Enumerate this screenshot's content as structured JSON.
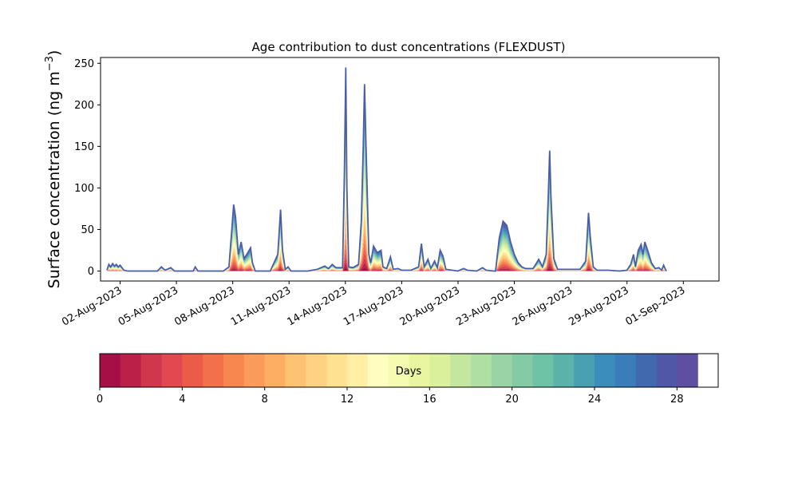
{
  "chart_data": {
    "type": "area",
    "title": "Age contribution to dust concentrations (FLEXDUST)",
    "ylabel_main": "Surface concentration (ng m",
    "ylabel_sup": "−3",
    "ylabel_close": ")",
    "ylim": [
      -12,
      257
    ],
    "yticks": [
      0,
      50,
      100,
      150,
      200,
      250
    ],
    "x_range_days": [
      "31-Jul-2023",
      "2-Sep-2023"
    ],
    "xticks": [
      {
        "date": "02-Aug-2023",
        "day": 2
      },
      {
        "date": "05-Aug-2023",
        "day": 5
      },
      {
        "date": "08-Aug-2023",
        "day": 8
      },
      {
        "date": "11-Aug-2023",
        "day": 11
      },
      {
        "date": "14-Aug-2023",
        "day": 14
      },
      {
        "date": "17-Aug-2023",
        "day": 17
      },
      {
        "date": "20-Aug-2023",
        "day": 20
      },
      {
        "date": "23-Aug-2023",
        "day": 23
      },
      {
        "date": "26-Aug-2023",
        "day": 26
      },
      {
        "date": "29-Aug-2023",
        "day": 29
      },
      {
        "date": "01-Sep-2023",
        "day": 32
      }
    ],
    "grid": false,
    "total_series": [
      [
        1.3,
        1
      ],
      [
        1.4,
        8
      ],
      [
        1.5,
        5
      ],
      [
        1.6,
        9
      ],
      [
        1.7,
        6
      ],
      [
        1.8,
        8
      ],
      [
        1.9,
        5
      ],
      [
        2.0,
        7
      ],
      [
        2.1,
        4
      ],
      [
        2.2,
        1
      ],
      [
        2.4,
        0
      ],
      [
        3.0,
        0
      ],
      [
        4.0,
        0
      ],
      [
        4.2,
        5
      ],
      [
        4.4,
        1
      ],
      [
        4.7,
        4
      ],
      [
        4.9,
        0
      ],
      [
        5.5,
        0
      ],
      [
        5.9,
        0
      ],
      [
        6.0,
        5
      ],
      [
        6.15,
        0
      ],
      [
        6.5,
        0
      ],
      [
        7.5,
        0
      ],
      [
        7.8,
        5
      ],
      [
        7.95,
        50
      ],
      [
        8.05,
        80
      ],
      [
        8.15,
        65
      ],
      [
        8.3,
        20
      ],
      [
        8.45,
        35
      ],
      [
        8.6,
        15
      ],
      [
        8.8,
        22
      ],
      [
        8.95,
        28
      ],
      [
        9.05,
        10
      ],
      [
        9.2,
        0
      ],
      [
        10.0,
        0
      ],
      [
        10.4,
        20
      ],
      [
        10.55,
        74
      ],
      [
        10.65,
        25
      ],
      [
        10.8,
        2
      ],
      [
        10.95,
        5
      ],
      [
        11.1,
        0
      ],
      [
        12.0,
        0
      ],
      [
        12.5,
        2
      ],
      [
        12.9,
        6
      ],
      [
        13.1,
        3
      ],
      [
        13.3,
        8
      ],
      [
        13.5,
        4
      ],
      [
        13.85,
        4
      ],
      [
        13.95,
        120
      ],
      [
        14.02,
        245
      ],
      [
        14.08,
        100
      ],
      [
        14.18,
        5
      ],
      [
        14.4,
        4
      ],
      [
        14.7,
        8
      ],
      [
        14.85,
        60
      ],
      [
        14.95,
        150
      ],
      [
        15.02,
        225
      ],
      [
        15.1,
        150
      ],
      [
        15.25,
        20
      ],
      [
        15.35,
        10
      ],
      [
        15.5,
        30
      ],
      [
        15.7,
        22
      ],
      [
        15.9,
        25
      ],
      [
        16.0,
        5
      ],
      [
        16.2,
        3
      ],
      [
        16.4,
        17
      ],
      [
        16.55,
        2
      ],
      [
        16.8,
        3
      ],
      [
        17.0,
        1
      ],
      [
        17.5,
        1
      ],
      [
        17.9,
        5
      ],
      [
        18.05,
        33
      ],
      [
        18.2,
        5
      ],
      [
        18.4,
        14
      ],
      [
        18.55,
        3
      ],
      [
        18.75,
        12
      ],
      [
        18.9,
        4
      ],
      [
        19.05,
        25
      ],
      [
        19.2,
        18
      ],
      [
        19.35,
        2
      ],
      [
        20.0,
        0
      ],
      [
        20.3,
        3
      ],
      [
        20.5,
        1
      ],
      [
        21.0,
        0
      ],
      [
        21.3,
        4
      ],
      [
        21.5,
        1
      ],
      [
        21.9,
        0
      ],
      [
        22.0,
        0
      ],
      [
        22.2,
        40
      ],
      [
        22.4,
        60
      ],
      [
        22.6,
        55
      ],
      [
        22.8,
        35
      ],
      [
        23.0,
        20
      ],
      [
        23.2,
        10
      ],
      [
        23.4,
        5
      ],
      [
        23.6,
        3
      ],
      [
        24.0,
        3
      ],
      [
        24.3,
        14
      ],
      [
        24.5,
        5
      ],
      [
        24.7,
        20
      ],
      [
        24.82,
        100
      ],
      [
        24.88,
        145
      ],
      [
        24.95,
        90
      ],
      [
        25.1,
        15
      ],
      [
        25.3,
        2
      ],
      [
        26.0,
        2
      ],
      [
        26.5,
        2
      ],
      [
        26.8,
        12
      ],
      [
        26.95,
        70
      ],
      [
        27.05,
        40
      ],
      [
        27.2,
        5
      ],
      [
        27.4,
        1
      ],
      [
        28.0,
        1
      ],
      [
        28.6,
        0
      ],
      [
        29.0,
        1
      ],
      [
        29.2,
        8
      ],
      [
        29.35,
        20
      ],
      [
        29.45,
        5
      ],
      [
        29.6,
        25
      ],
      [
        29.75,
        32
      ],
      [
        29.85,
        20
      ],
      [
        29.95,
        35
      ],
      [
        30.1,
        25
      ],
      [
        30.3,
        10
      ],
      [
        30.5,
        3
      ],
      [
        30.7,
        4
      ],
      [
        30.85,
        1
      ],
      [
        30.95,
        7
      ],
      [
        31.05,
        2
      ],
      [
        31.1,
        0
      ]
    ],
    "colorbar": {
      "label": "Days",
      "min": 0,
      "max": 30,
      "ticks": [
        0,
        4,
        8,
        12,
        16,
        20,
        24,
        28
      ],
      "colors": [
        "#a50f45",
        "#bb2148",
        "#d0364c",
        "#e1484f",
        "#ec5b48",
        "#f3714a",
        "#f7874f",
        "#fa9b59",
        "#fdae62",
        "#fdc373",
        "#fed282",
        "#fee191",
        "#fff0a6",
        "#fffebf",
        "#f5fbb0",
        "#eaf69f",
        "#daf09b",
        "#c5e69f",
        "#b0dfa2",
        "#9bd4a4",
        "#84cba5",
        "#6ec2a5",
        "#5ab2ab",
        "#4aa0b3",
        "#3b8ebb",
        "#3a7db8",
        "#4169ae",
        "#4e58a6",
        "#5e4fa2"
      ]
    }
  }
}
